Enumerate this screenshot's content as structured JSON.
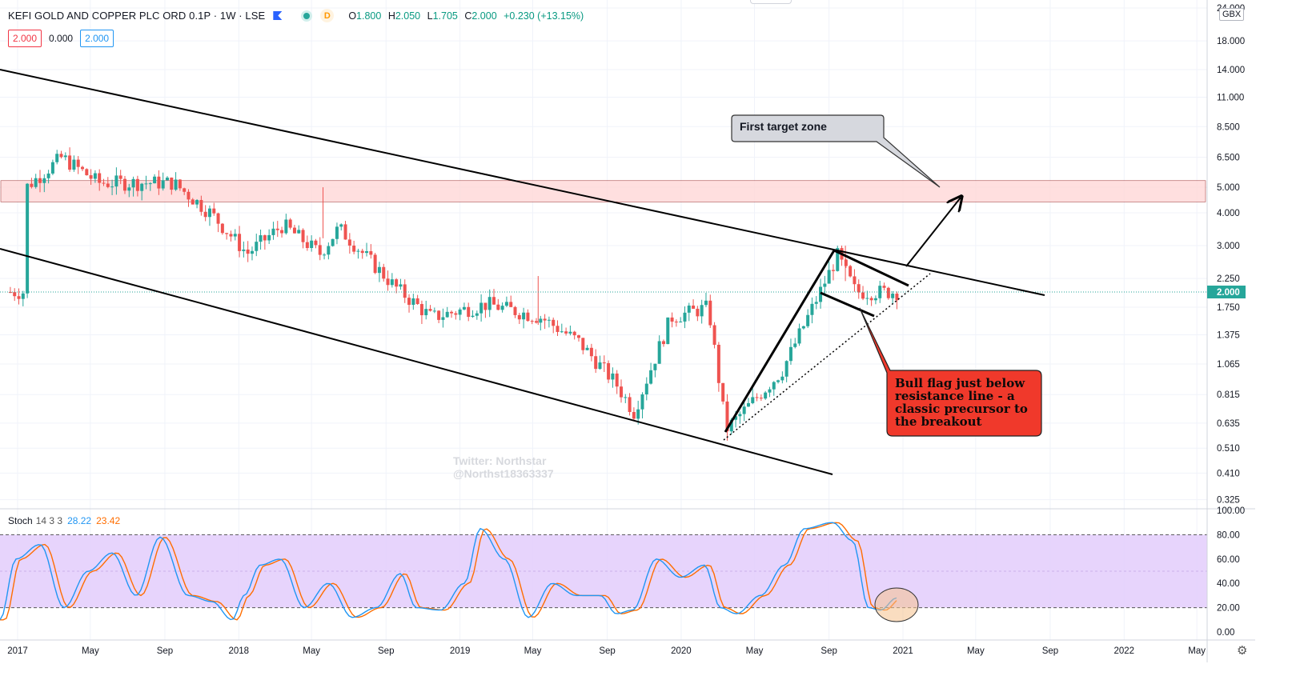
{
  "header": {
    "symbol_title": "KEFI GOLD AND COPPER PLC ORD 0.1P · 1W · LSE",
    "interval_badge": "D",
    "ohlc": {
      "o_label": "O",
      "o": "1.800",
      "h_label": "H",
      "h": "2.050",
      "l_label": "L",
      "l": "1.705",
      "c_label": "C",
      "c": "2.000",
      "change": "+0.230 (+13.15%)"
    },
    "value_boxes": [
      "2.000",
      "0.000",
      "2.000"
    ],
    "currency": "GBX"
  },
  "colors": {
    "up": "#26a69a",
    "down": "#ef5350",
    "zone_fill": "#ffdada",
    "stoch_band": "#e3ccfb",
    "k_line": "#2196f3",
    "d_line": "#ff6d00",
    "price_tag": "#26a69a"
  },
  "stoch": {
    "title": "Stoch",
    "params": "14 3 3",
    "k_value": "28.22",
    "d_value": "23.42"
  },
  "icons": [
    "flag-icon",
    "status-dot-icon",
    "gear-icon"
  ],
  "chart_data": {
    "type": "candlestick",
    "y_scale": "log",
    "ylim": [
      0.3,
      24
    ],
    "y_ticks": [
      "24.000",
      "18.000",
      "14.000",
      "11.000",
      "8.500",
      "6.500",
      "5.000",
      "4.000",
      "3.000",
      "2.250",
      "1.750",
      "1.375",
      "1.065",
      "0.815",
      "0.635",
      "0.510",
      "0.410",
      "0.325"
    ],
    "x_ticks": [
      "2017",
      "May",
      "Sep",
      "2018",
      "May",
      "Sep",
      "2019",
      "May",
      "Sep",
      "2020",
      "May",
      "Sep",
      "2021",
      "May",
      "Sep",
      "2022",
      "May"
    ],
    "last_price": "2.000",
    "price_checkpoints": [
      {
        "date": "2017-01",
        "price": 5.0
      },
      {
        "date": "2017-03",
        "price": 6.5
      },
      {
        "date": "2017-05",
        "price": 5.2
      },
      {
        "date": "2017-09",
        "price": 5.2
      },
      {
        "date": "2017-11",
        "price": 4.0
      },
      {
        "date": "2018-01",
        "price": 2.8
      },
      {
        "date": "2018-03",
        "price": 3.6
      },
      {
        "date": "2018-05",
        "price": 2.8
      },
      {
        "date": "2018-06",
        "price": 3.5
      },
      {
        "date": "2018-09",
        "price": 2.1
      },
      {
        "date": "2018-11",
        "price": 1.6
      },
      {
        "date": "2019-02",
        "price": 1.8
      },
      {
        "date": "2019-05",
        "price": 1.6
      },
      {
        "date": "2019-07",
        "price": 1.3
      },
      {
        "date": "2019-09",
        "price": 0.9
      },
      {
        "date": "2019-10",
        "price": 0.7
      },
      {
        "date": "2019-12",
        "price": 1.6
      },
      {
        "date": "2020-02",
        "price": 1.75
      },
      {
        "date": "2020-03",
        "price": 0.6
      },
      {
        "date": "2020-06",
        "price": 1.0
      },
      {
        "date": "2020-09",
        "price": 2.75
      },
      {
        "date": "2020-10",
        "price": 2.0
      },
      {
        "date": "2020-12",
        "price": 2.0
      }
    ],
    "resistance_zone": [
      4.4,
      5.3
    ],
    "annotations": [
      {
        "id": "target",
        "text": "First target zone"
      },
      {
        "id": "flag",
        "lines": [
          "Bull flag just below",
          "resistance line - a",
          "classic precursor to",
          "the breakout"
        ]
      }
    ],
    "watermark": [
      "Twitter: Northstar",
      "@Northst18363337"
    ],
    "stoch_ylim": [
      0,
      100
    ],
    "stoch_ticks": [
      "100.00",
      "80.00",
      "60.00",
      "40.00",
      "20.00",
      "0.00"
    ],
    "stoch_band": [
      20,
      80
    ]
  }
}
